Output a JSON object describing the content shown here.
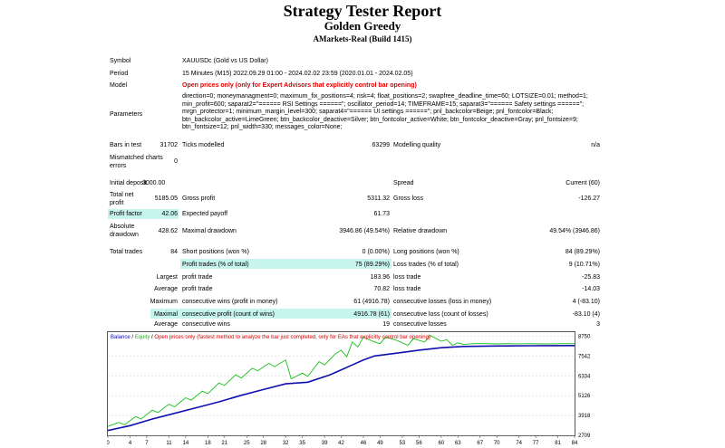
{
  "header": {
    "title": "Strategy Tester Report",
    "subtitle": "Golden Greedy",
    "build": "AMarkets-Real (Build 1415)"
  },
  "info": {
    "symbol_label": "Symbol",
    "symbol_value": "XAUUSDc (Gold vs US Dollar)",
    "period_label": "Period",
    "period_value": "15 Minutes (M15) 2022.09.29 01:00 - 2024.02.02 23:59 (2020.01.01 - 2024.02.05)",
    "model_label": "Model",
    "model_value": "Open prices only (only for Expert Advisors that explicitly control bar opening)",
    "params_label": "Parameters",
    "params_value": "direction=0; moneymanagment=0; maximum_fix_positions=4; risk=4; float_positions=2; swapfree_deadline_time=60; LOTSIZE=0.01; method=1; min_profit=600; saparat2=\"====== RSI Settings ======\"; oscillator_period=14; TIMEFRAME=15; saparat3=\"====== Safety settings ======\"; mrgn_protector=1; minimum_margin_level=300; saparat4=\"====== UI settings ======\"; pnl_backcolor=Beige; pnl_fontcolor=Black; btn_backcolor_active=LimeGreen; btn_backcolor_deactive=Silver; btn_fontcolor_active=White; btn_fontcolor_deactive=Gray; pnl_fontsize=9; btn_fontsize=12; pnl_width=330; messages_color=None;"
  },
  "stats": {
    "bars_label": "Bars in test",
    "bars_value": "31702",
    "ticks_label": "Ticks modelled",
    "ticks_value": "63299",
    "quality_label": "Modelling quality",
    "quality_value": "n/a",
    "mismatch_label": "Mismatched charts errors",
    "mismatch_value": "0",
    "deposit_label": "Initial deposit",
    "deposit_value": "3000.00",
    "spread_label": "Spread",
    "spread_value": "Current (60)",
    "netprofit_label": "Total net profit",
    "netprofit_value": "5185.05",
    "grossprofit_label": "Gross profit",
    "grossprofit_value": "5311.32",
    "grossloss_label": "Gross loss",
    "grossloss_value": "-126.27",
    "pf_label": "Profit factor",
    "pf_value": "42.06",
    "payoff_label": "Expected payoff",
    "payoff_value": "61.73",
    "absdd_label": "Absolute drawdown",
    "absdd_value": "428.62",
    "maxdd_label": "Maximal drawdown",
    "maxdd_value": "3946.86 (49.54%)",
    "reldd_label": "Relative drawdown",
    "reldd_value": "49.54% (3946.86)",
    "trades_label": "Total trades",
    "trades_value": "84",
    "short_label": "Short positions (won %)",
    "short_value": "0 (0.00%)",
    "long_label": "Long positions (won %)",
    "long_value": "84 (89.29%)",
    "pt_label": "Profit trades (% of total)",
    "pt_value": "75 (89.29%)",
    "lt_label": "Loss trades (% of total)",
    "lt_value": "9 (10.71%)",
    "largest_label": "Largest",
    "lpt_label": "profit trade",
    "lpt_value": "183.96",
    "llt_label": "loss trade",
    "llt_value": "-25.83",
    "average_label": "Average",
    "apt_label": "profit trade",
    "apt_value": "70.82",
    "alt_label": "loss trade",
    "alt_value": "-14.03",
    "maximum_label": "Maximum",
    "mcw_label": "consecutive wins (profit in money)",
    "mcw_value": "61 (4916.78)",
    "mcl_label": "consecutive losses (loss in money)",
    "mcl_value": "4 (-83.10)",
    "maximal_label": "Maximal",
    "mcp_label": "consecutive profit (count of wins)",
    "mcp_value": "4916.78 (61)",
    "mclc_label": "consecutive loss (count of losses)",
    "mclc_value": "-83.10 (4)",
    "average2_label": "Average",
    "acw_label": "consecutive wins",
    "acw_value": "19",
    "acl_label": "consecutive losses",
    "acl_value": "3"
  },
  "chart_data": {
    "type": "line",
    "legend": {
      "balance": "Balance",
      "sep1": " / ",
      "equity": "Equity",
      "sep2": " / ",
      "note": "Open prices only (fastest method to analyze the bar just completed, only for EAs that explicitly control bar opening)"
    },
    "colors": {
      "balance": "#1010b0",
      "equity": "#18c018",
      "note": "#e00000",
      "grid": "#cfcfcf"
    },
    "xlim": [
      0,
      84
    ],
    "x_ticks": [
      0,
      4,
      7,
      11,
      14,
      18,
      21,
      25,
      28,
      32,
      35,
      39,
      42,
      46,
      49,
      53,
      56,
      60,
      63,
      67,
      70,
      74,
      77,
      81,
      84
    ],
    "ylim": [
      2709,
      9000
    ],
    "y_ticks": [
      2709,
      3918,
      5126,
      6334,
      7542,
      8750
    ],
    "series": [
      {
        "name": "Balance",
        "x": [
          0,
          4,
          8,
          12,
          16,
          20,
          24,
          28,
          32,
          34,
          36,
          40,
          44,
          46,
          48,
          52,
          56,
          60,
          64,
          68,
          72,
          76,
          80,
          84
        ],
        "y": [
          3000,
          3300,
          3700,
          4050,
          4400,
          4750,
          5150,
          5500,
          5850,
          5900,
          5950,
          6400,
          7000,
          7300,
          7550,
          7720,
          7900,
          8050,
          8130,
          8150,
          8160,
          8170,
          8180,
          8185
        ]
      },
      {
        "name": "Equity",
        "x": [
          0,
          2,
          3,
          5,
          6,
          8,
          9,
          11,
          12,
          14,
          15,
          17,
          18,
          20,
          21,
          23,
          24,
          26,
          27,
          29,
          30,
          32,
          33,
          35,
          36,
          38,
          39,
          41,
          42,
          43,
          44,
          45,
          46,
          48,
          49,
          50,
          52,
          54,
          55,
          57,
          58,
          60,
          61,
          62,
          63,
          64,
          66,
          68,
          70,
          72,
          74,
          76,
          78,
          80,
          82,
          84
        ],
        "y": [
          3250,
          3500,
          3350,
          3850,
          3700,
          4250,
          4100,
          4600,
          4450,
          5000,
          4850,
          5400,
          5250,
          5900,
          5750,
          6400,
          6200,
          6800,
          6650,
          7100,
          6900,
          7300,
          6150,
          6500,
          6300,
          7200,
          7000,
          7700,
          7900,
          7500,
          8400,
          8100,
          8700,
          8400,
          8300,
          8700,
          8500,
          8200,
          8600,
          8400,
          8800,
          8450,
          8550,
          8200,
          8350,
          8250,
          8300,
          8300,
          8280,
          8300,
          8290,
          8300,
          8280,
          8290,
          8300,
          8300
        ]
      }
    ]
  }
}
